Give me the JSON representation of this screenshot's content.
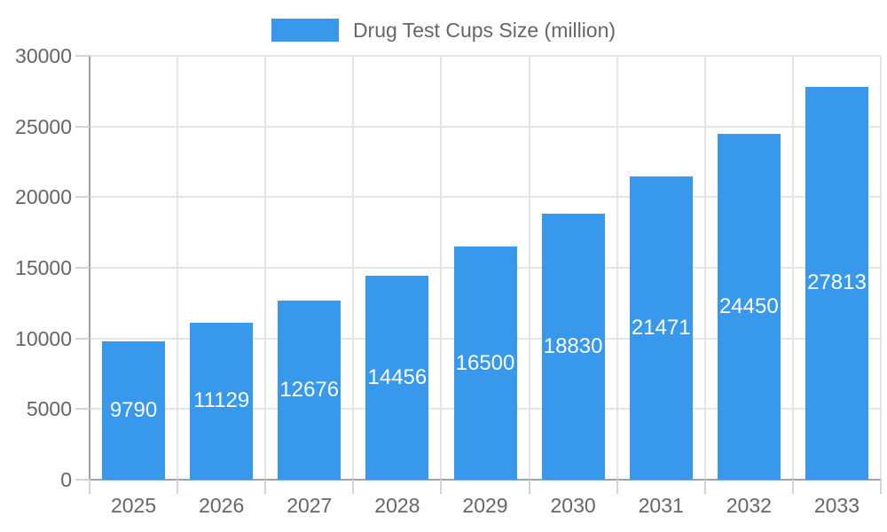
{
  "legend": {
    "label": "Drug Test Cups Size (million)"
  },
  "chart_data": {
    "type": "bar",
    "title": "Drug Test Cups Size (million)",
    "categories": [
      "2025",
      "2026",
      "2027",
      "2028",
      "2029",
      "2030",
      "2031",
      "2032",
      "2033"
    ],
    "values": [
      9790,
      11129,
      12676,
      14456,
      16500,
      18830,
      21471,
      24450,
      27813
    ],
    "series": [
      {
        "name": "Drug Test Cups Size (million)",
        "values": [
          9790,
          11129,
          12676,
          14456,
          16500,
          18830,
          21471,
          24450,
          27813
        ]
      }
    ],
    "xlabel": "",
    "ylabel": "",
    "ylim": [
      0,
      30000
    ],
    "y_ticks": [
      0,
      5000,
      10000,
      15000,
      20000,
      25000,
      30000
    ],
    "grid": "on",
    "legend_position": "top-center",
    "value_label_position": "inside-center"
  },
  "colors": {
    "bar": "#3898EC",
    "grid": "#E5E5E5",
    "axis": "#A3A3A3",
    "tick": "#D4D4D4",
    "tick_label": "#666666",
    "value_label": "#FFFFFF",
    "background": "#FFFFFF"
  }
}
